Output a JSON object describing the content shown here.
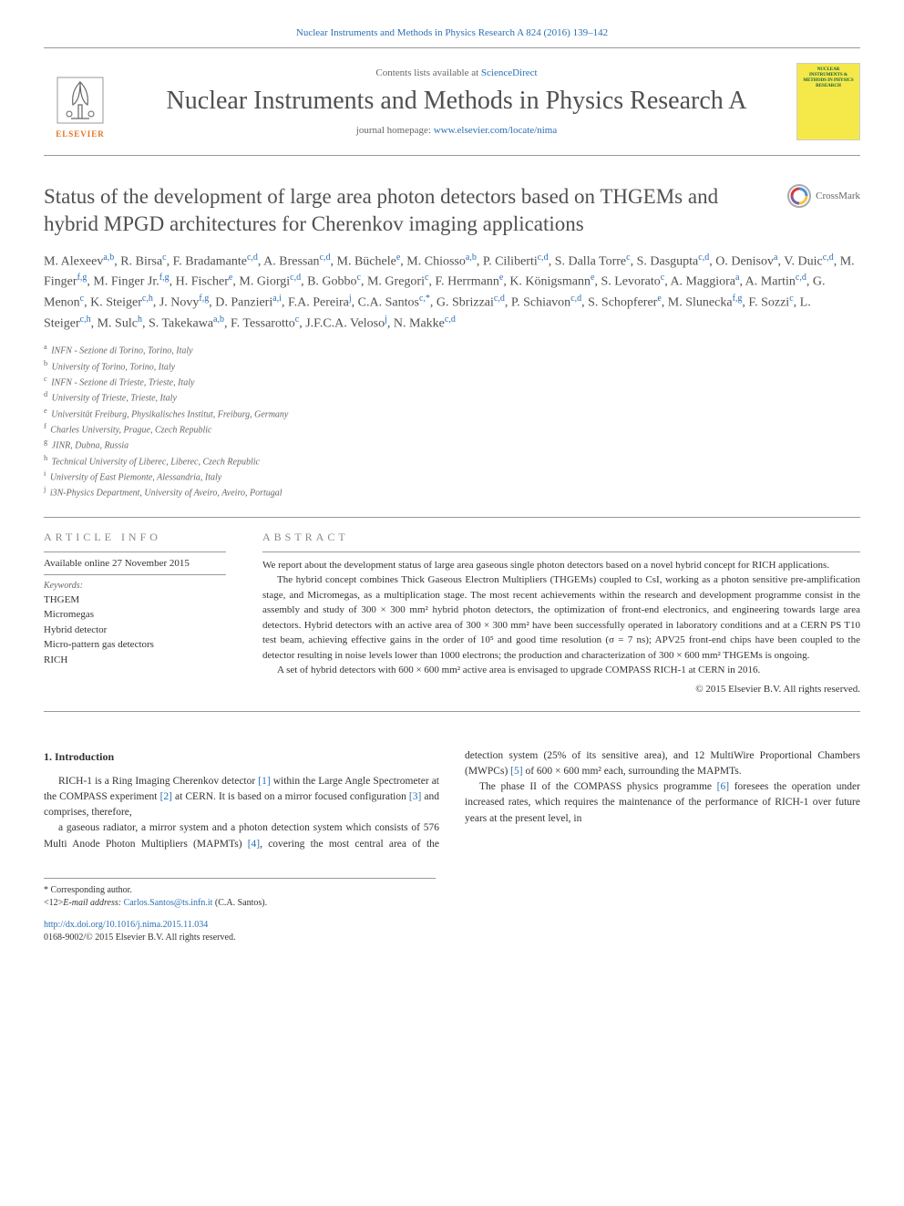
{
  "header": {
    "journal_ref": "Nuclear Instruments and Methods in Physics Research A 824 (2016) 139–142",
    "contents_text": "Contents lists available at ",
    "contents_link": "ScienceDirect",
    "journal_name": "Nuclear Instruments and Methods in Physics Research A",
    "homepage_label": "journal homepage: ",
    "homepage_url": "www.elsevier.com/locate/nima",
    "elsevier_label": "ELSEVIER",
    "cover_text": "NUCLEAR INSTRUMENTS & METHODS IN PHYSICS RESEARCH"
  },
  "title": "Status of the development of large area photon detectors based on THGEMs and hybrid MPGD architectures for Cherenkov imaging applications",
  "crossmark_label": "CrossMark",
  "authors_html": "M. Alexeev<sup>a,b</sup>, R. Birsa<sup>c</sup>, F. Bradamante<sup>c,d</sup>, A. Bressan<sup>c,d</sup>, M. Büchele<sup>e</sup>, M. Chiosso<sup>a,b</sup>, P. Ciliberti<sup>c,d</sup>, S. Dalla Torre<sup>c</sup>, S. Dasgupta<sup>c,d</sup>, O. Denisov<sup>a</sup>, V. Duic<sup>c,d</sup>, M. Finger<sup>f,g</sup>, M. Finger Jr.<sup>f,g</sup>, H. Fischer<sup>e</sup>, M. Giorgi<sup>c,d</sup>, B. Gobbo<sup>c</sup>, M. Gregori<sup>c</sup>, F. Herrmann<sup>e</sup>, K. Königsmann<sup>e</sup>, S. Levorato<sup>c</sup>, A. Maggiora<sup>a</sup>, A. Martin<sup>c,d</sup>, G. Menon<sup>c</sup>, K. Steiger<sup>c,h</sup>, J. Novy<sup>f,g</sup>, D. Panzieri<sup>a,i</sup>, F.A. Pereira<sup>j</sup>, C.A. Santos<sup>c,*</sup>, G. Sbrizzai<sup>c,d</sup>, P. Schiavon<sup>c,d</sup>, S. Schopferer<sup>e</sup>, M. Slunecka<sup>f,g</sup>, F. Sozzi<sup>c</sup>, L. Steiger<sup>c,h</sup>, M. Sulc<sup>h</sup>, S. Takekawa<sup>a,b</sup>, F. Tessarotto<sup>c</sup>, J.F.C.A. Veloso<sup>j</sup>, N. Makke<sup>c,d</sup>",
  "affiliations": [
    {
      "sup": "a",
      "text": "INFN - Sezione di Torino, Torino, Italy"
    },
    {
      "sup": "b",
      "text": "University of Torino, Torino, Italy"
    },
    {
      "sup": "c",
      "text": "INFN - Sezione di Trieste, Trieste, Italy"
    },
    {
      "sup": "d",
      "text": "University of Trieste, Trieste, Italy"
    },
    {
      "sup": "e",
      "text": "Universität Freiburg, Physikalisches Institut, Freiburg, Germany"
    },
    {
      "sup": "f",
      "text": "Charles University, Prague, Czech Republic"
    },
    {
      "sup": "g",
      "text": "JINR, Dubna, Russia"
    },
    {
      "sup": "h",
      "text": "Technical University of Liberec, Liberec, Czech Republic"
    },
    {
      "sup": "i",
      "text": "University of East Piemonte, Alessandria, Italy"
    },
    {
      "sup": "j",
      "text": "i3N-Physics Department, University of Aveiro, Aveiro, Portugal"
    }
  ],
  "article_info": {
    "heading": "ARTICLE INFO",
    "available": "Available online 27 November 2015",
    "keywords_label": "Keywords:",
    "keywords": [
      "THGEM",
      "Micromegas",
      "Hybrid detector",
      "Micro-pattern gas detectors",
      "RICH"
    ]
  },
  "abstract": {
    "heading": "ABSTRACT",
    "paragraphs": [
      "We report about the development status of large area gaseous single photon detectors based on a novel hybrid concept for RICH applications.",
      "The hybrid concept combines Thick Gaseous Electron Multipliers (THGEMs) coupled to CsI, working as a photon sensitive pre-amplification stage, and Micromegas, as a multiplication stage. The most recent achievements within the research and development programme consist in the assembly and study of 300 × 300 mm² hybrid photon detectors, the optimization of front-end electronics, and engineering towards large area detectors. Hybrid detectors with an active area of 300 × 300 mm² have been successfully operated in laboratory conditions and at a CERN PS T10 test beam, achieving effective gains in the order of 10⁵ and good time resolution (σ = 7 ns); APV25 front-end chips have been coupled to the detector resulting in noise levels lower than 1000 electrons; the production and characterization of 300 × 600 mm² THGEMs is ongoing.",
      "A set of hybrid detectors with 600 × 600 mm² active area is envisaged to upgrade COMPASS RICH-1 at CERN in 2016."
    ],
    "copyright": "© 2015 Elsevier B.V. All rights reserved."
  },
  "body": {
    "section_heading": "1. Introduction",
    "col1": "RICH-1 is a Ring Imaging Cherenkov detector [1] within the Large Angle Spectrometer at the COMPASS experiment [2] at CERN. It is based on a mirror focused configuration [3] and comprises, therefore,",
    "col2_p1": "a gaseous radiator, a mirror system and a photon detection system which consists of 576 Multi Anode Photon Multipliers (MAPMTs) [4], covering the most central area of the detection system (25% of its sensitive area), and 12 MultiWire Proportional Chambers (MWPCs) [5] of 600 × 600 mm² each, surrounding the MAPMTs.",
    "col2_p2": "The phase II of the COMPASS physics programme [6] foresees the operation under increased rates, which requires the maintenance of the performance of RICH-1 over future years at the present level, in"
  },
  "footer": {
    "corr_label": "* Corresponding author.",
    "email_label": "E-mail address: ",
    "email": "Carlos.Santos@ts.infn.it",
    "email_name": " (C.A. Santos).",
    "doi_url": "http://dx.doi.org/10.1016/j.nima.2015.11.034",
    "issn_line": "0168-9002/© 2015 Elsevier B.V. All rights reserved."
  },
  "colors": {
    "link": "#2a6fb3",
    "elsevier_orange": "#e8711e",
    "heading_gray": "#505050",
    "cover_bg": "#f5e94a"
  }
}
